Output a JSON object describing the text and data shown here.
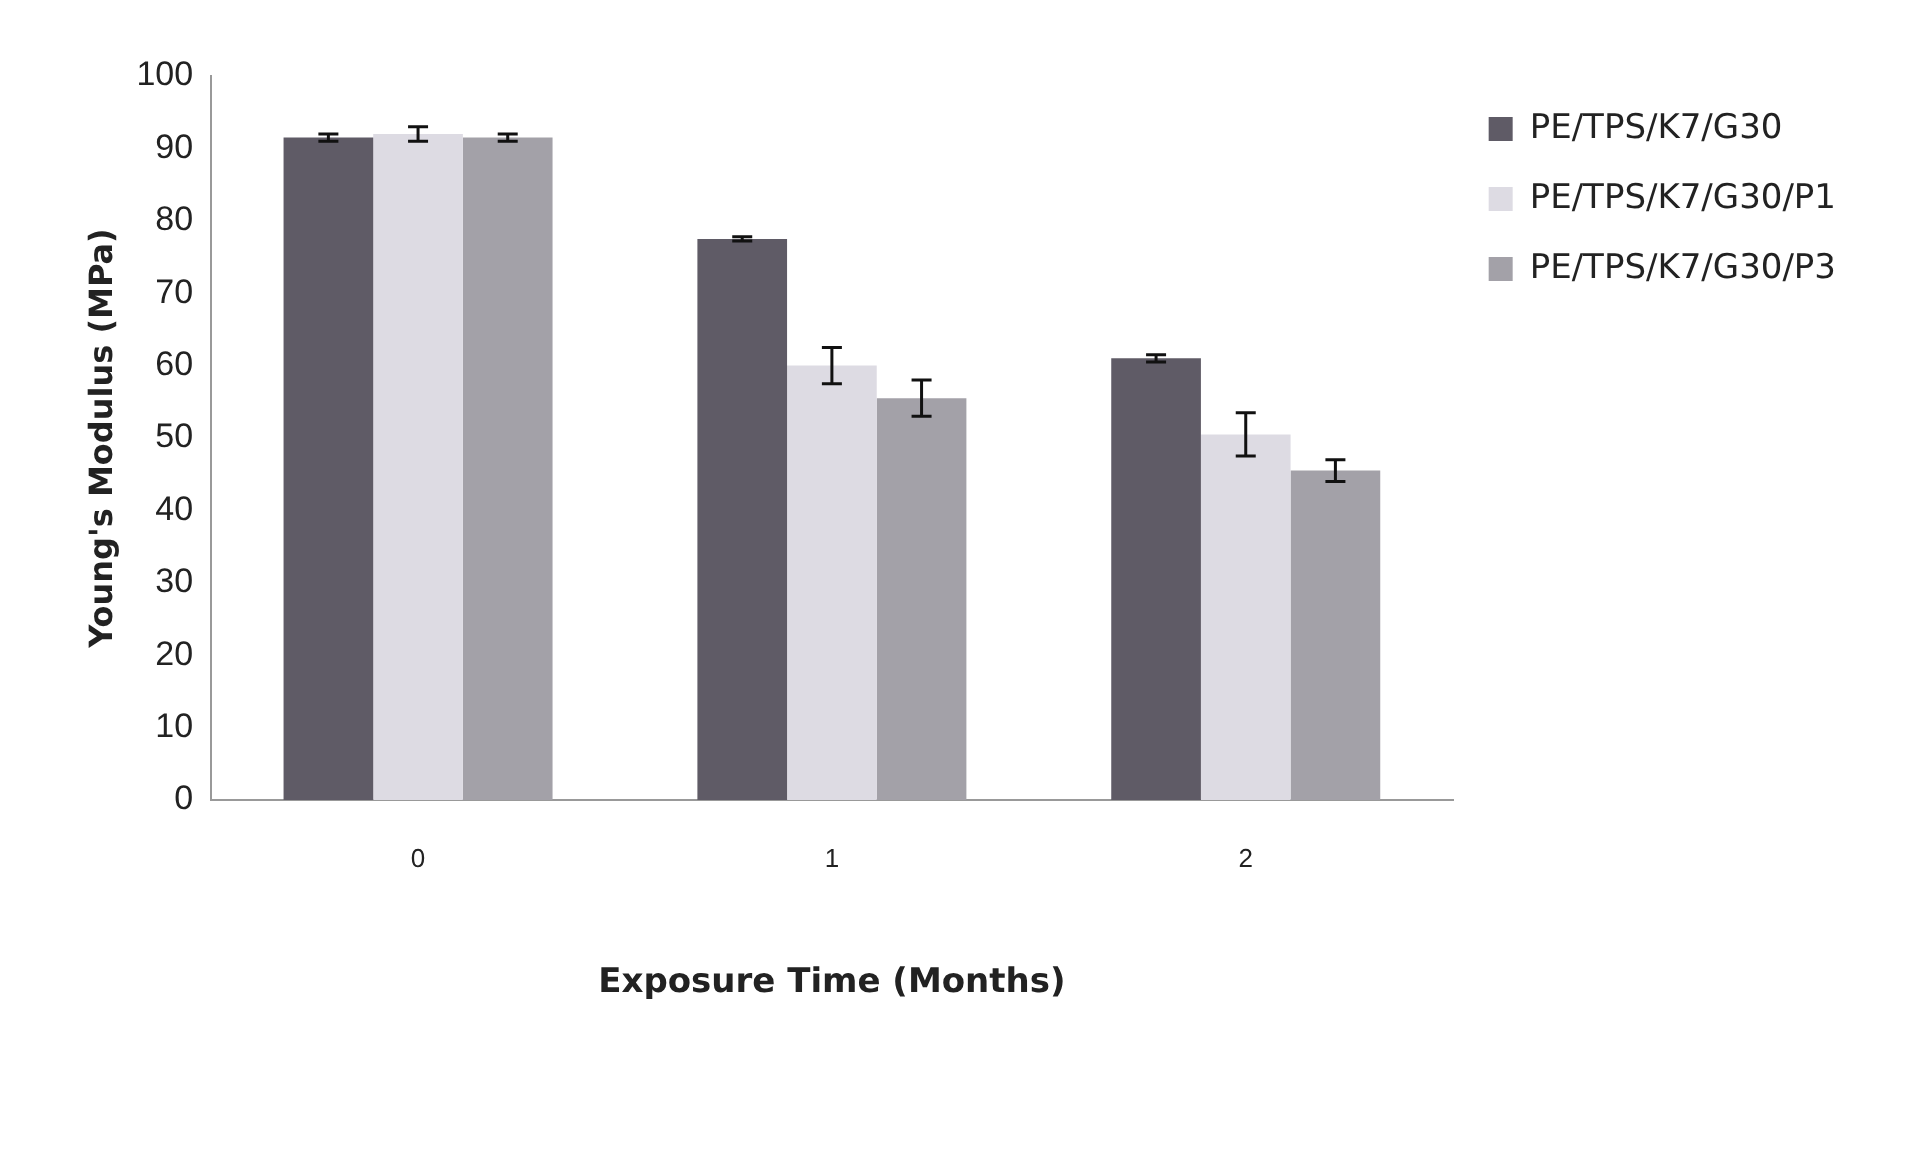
{
  "chart_data": {
    "type": "bar",
    "xlabel": "Exposure Time (Months)",
    "ylabel": "Young's Modulus (MPa)",
    "categories": [
      "0",
      "1",
      "2"
    ],
    "series": [
      {
        "name": "PE/TPS/K7/G30",
        "color": "#5f5b66",
        "values": [
          91.5,
          77.5,
          61
        ],
        "errors": [
          0.5,
          0.3,
          0.5
        ]
      },
      {
        "name": "PE/TPS/K7/G30/P1",
        "color": "#dddbe3",
        "values": [
          92,
          60,
          50.5
        ],
        "errors": [
          1,
          2.5,
          3
        ]
      },
      {
        "name": "PE/TPS/K7/G30/P3",
        "color": "#a3a1a8",
        "values": [
          91.5,
          55.5,
          45.5
        ],
        "errors": [
          0.5,
          2.5,
          1.5
        ]
      }
    ],
    "ylim": [
      0,
      100
    ],
    "yticks": [
      0,
      10,
      20,
      30,
      40,
      50,
      60,
      70,
      80,
      90,
      100
    ],
    "grid": false,
    "legend": "right"
  }
}
